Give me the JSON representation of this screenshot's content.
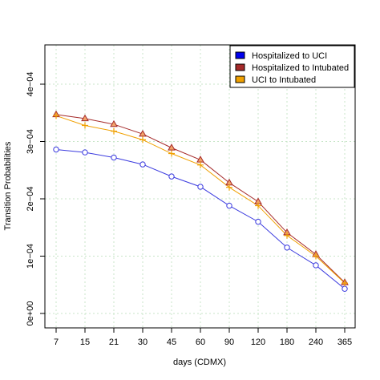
{
  "chart_data": {
    "type": "line",
    "categories": [
      "7",
      "15",
      "21",
      "30",
      "45",
      "60",
      "90",
      "120",
      "180",
      "240",
      "365"
    ],
    "xlabel": "days (CDMX)",
    "ylabel": "Transition Probabilities",
    "ylim": [
      0,
      0.00045
    ],
    "yticks": [
      0,
      0.0001,
      0.0002,
      0.0003,
      0.0004
    ],
    "ytick_labels": [
      "0e+00",
      "1e−04",
      "2e−04",
      "3e−04",
      "4e−04"
    ],
    "grid": true,
    "legend_position": "top-right",
    "series": [
      {
        "name": "Hospitalized to UCI",
        "color": "#3a3adf",
        "legend_color": "#0000ee",
        "marker": "circle",
        "values": [
          0.000286,
          0.000281,
          0.000272,
          0.00026,
          0.000239,
          0.000221,
          0.000188,
          0.00016,
          0.000115,
          8.4e-05,
          4.3e-05
        ]
      },
      {
        "name": "Hospitalized to Intubated",
        "color": "#a52a2a",
        "legend_color": "#a52a2a",
        "marker": "triangle",
        "values": [
          0.000347,
          0.00034,
          0.00033,
          0.000313,
          0.000289,
          0.000268,
          0.000228,
          0.000195,
          0.000141,
          0.000103,
          5.4e-05
        ]
      },
      {
        "name": "UCI to Intubated",
        "color": "#f0a000",
        "legend_color": "#f0a000",
        "marker": "plus",
        "values": [
          0.000345,
          0.000328,
          0.000318,
          0.000303,
          0.000279,
          0.000259,
          0.00022,
          0.000188,
          0.000136,
          0.0001,
          5.3e-05
        ]
      }
    ]
  }
}
